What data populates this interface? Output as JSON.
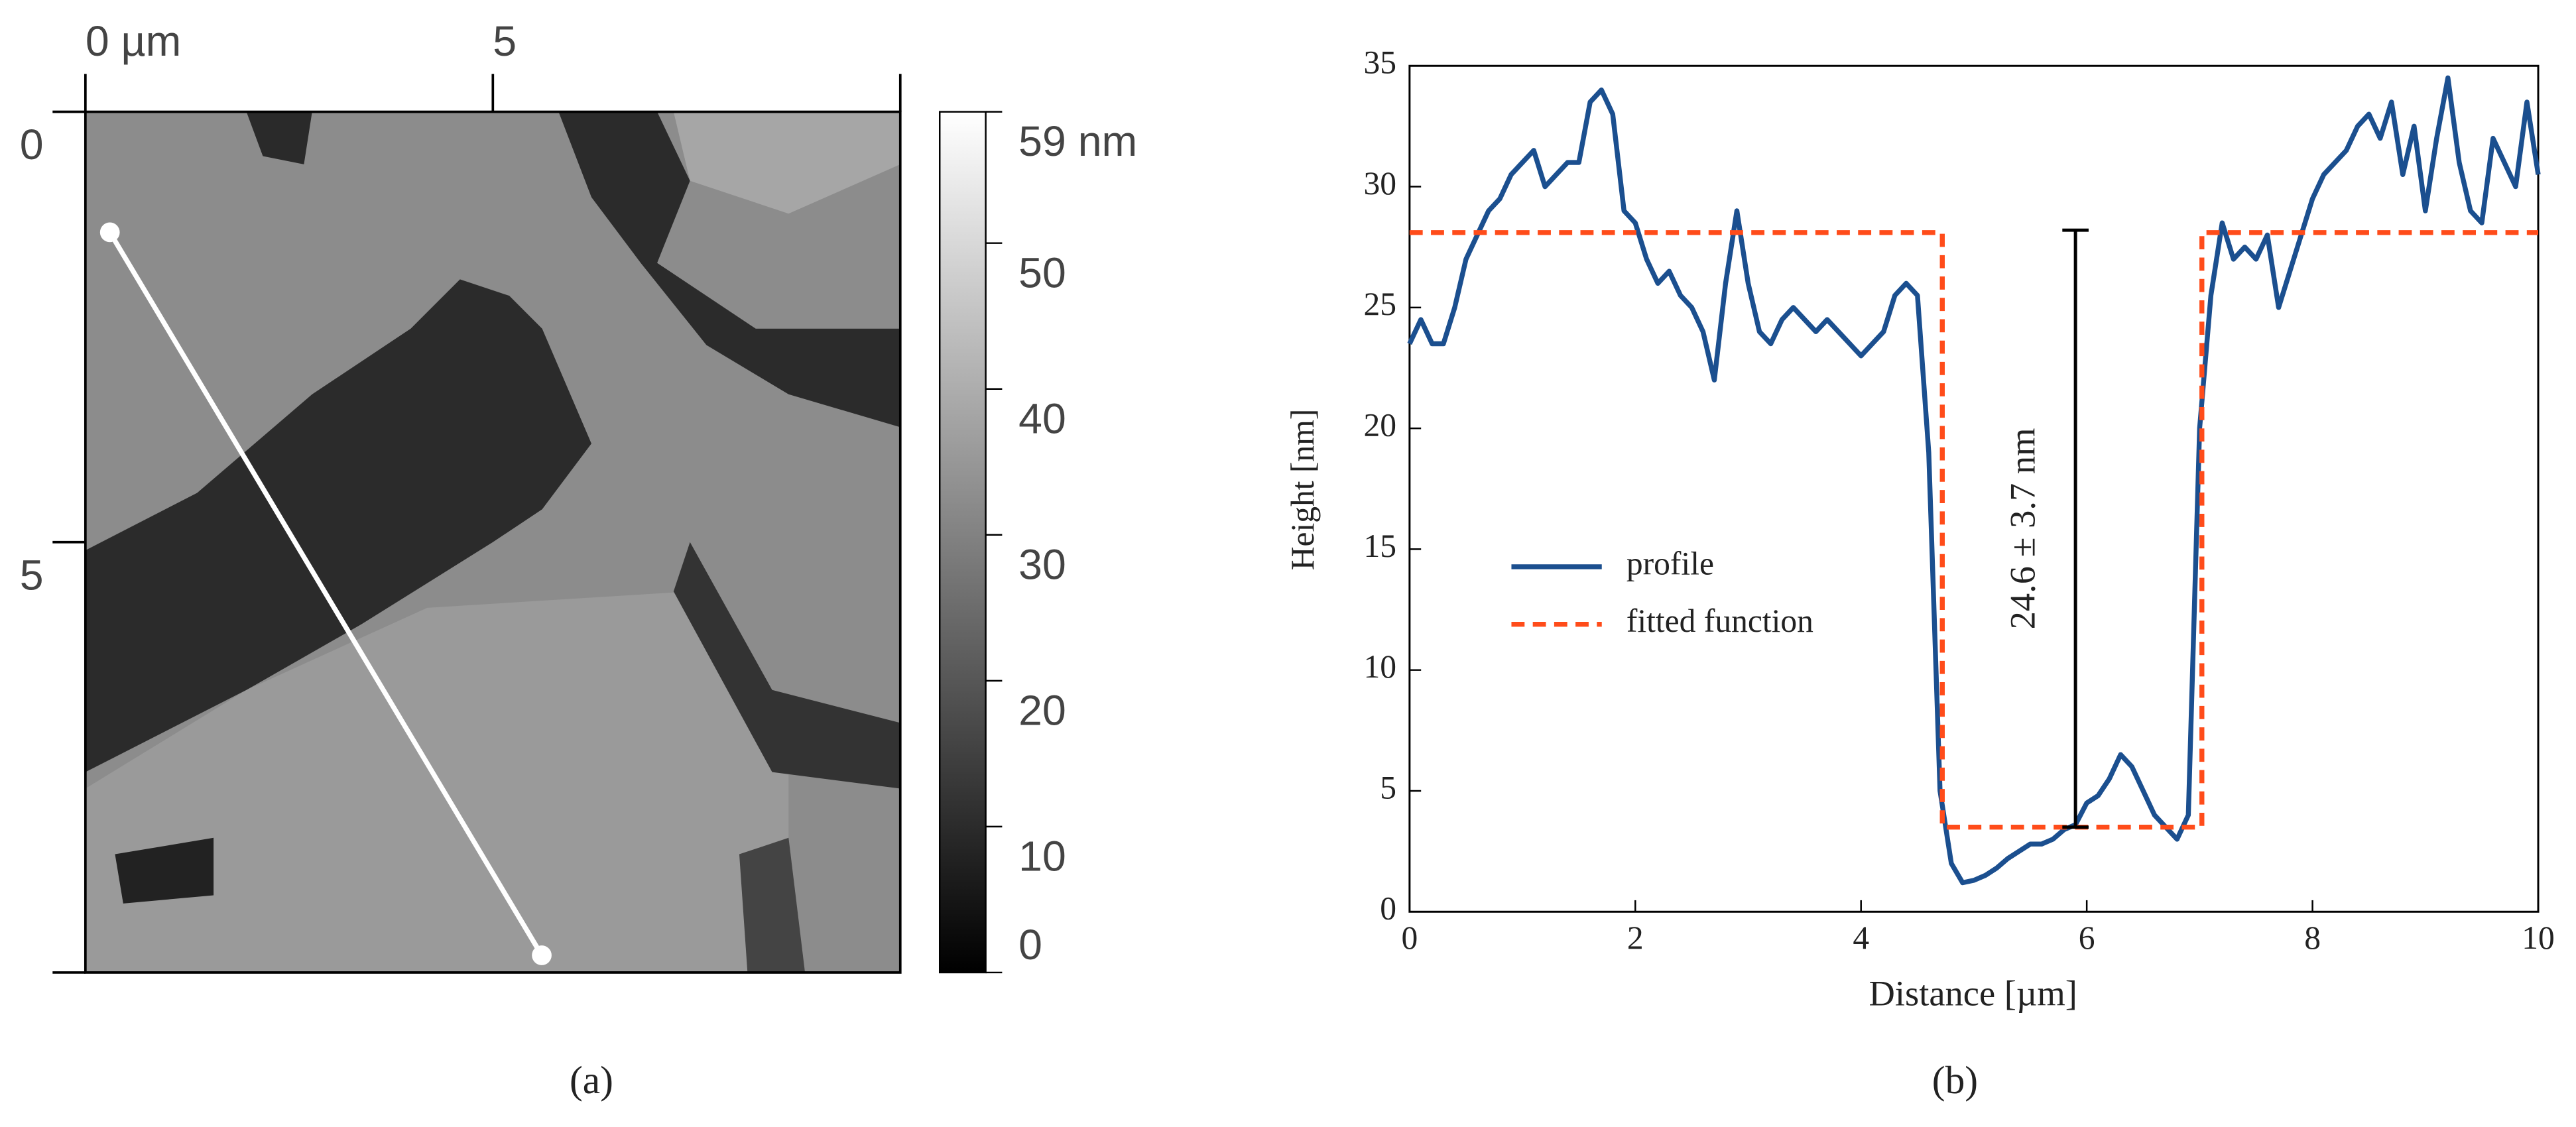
{
  "chart_data": [
    {
      "type": "image",
      "caption": "(a)",
      "xlim": [
        0,
        10
      ],
      "xticks": [
        {
          "value": 0,
          "label": "0 µm"
        },
        5
      ],
      "ylim": [
        10,
        0
      ],
      "yticks": [
        0,
        5
      ],
      "colorbar": {
        "lim": [
          0,
          59
        ],
        "ticks": [
          0,
          10,
          20,
          30,
          40,
          50,
          {
            "value": 59,
            "label": "59 nm"
          }
        ]
      },
      "profile_line": {
        "x": [
          0.3,
          5.6
        ],
        "y": [
          1.4,
          9.8
        ],
        "color": "#ffffff"
      }
    },
    {
      "type": "line",
      "caption": "(b)",
      "xlabel": "Distance [µm]",
      "ylabel": "Height [nm]",
      "xlim": [
        0,
        10
      ],
      "xticks": [
        0,
        2,
        4,
        6,
        8,
        10
      ],
      "ylim": [
        0,
        35
      ],
      "yticks": [
        0,
        5,
        10,
        15,
        20,
        25,
        30,
        35
      ],
      "legend": "center left",
      "annotation": "24.6 ± 3.7 nm",
      "bracket": {
        "x": 5.9,
        "y": [
          3.5,
          28.2
        ]
      },
      "series": [
        {
          "name": "profile",
          "color": "#1b4f8f",
          "dash": false,
          "x": [
            0,
            0.1,
            0.2,
            0.3,
            0.4,
            0.5,
            0.6,
            0.7,
            0.8,
            0.9,
            1,
            1.1,
            1.2,
            1.3,
            1.4,
            1.5,
            1.6,
            1.7,
            1.8,
            1.9,
            2,
            2.1,
            2.2,
            2.3,
            2.4,
            2.5,
            2.6,
            2.7,
            2.8,
            2.9,
            3,
            3.1,
            3.2,
            3.3,
            3.4,
            3.5,
            3.6,
            3.7,
            3.8,
            3.9,
            4,
            4.1,
            4.2,
            4.3,
            4.4,
            4.5,
            4.6,
            4.7,
            4.8,
            4.9,
            5,
            5.1,
            5.2,
            5.3,
            5.4,
            5.5,
            5.6,
            5.7,
            5.8,
            5.9,
            6,
            6.1,
            6.2,
            6.3,
            6.4,
            6.5,
            6.6,
            6.7,
            6.8,
            6.9,
            7,
            7.1,
            7.2,
            7.3,
            7.4,
            7.5,
            7.6,
            7.7,
            7.8,
            7.9,
            8,
            8.1,
            8.2,
            8.3,
            8.4,
            8.5,
            8.6,
            8.7,
            8.8,
            8.9,
            9,
            9.1,
            9.2,
            9.3,
            9.4,
            9.5,
            9.6,
            9.7,
            9.8,
            9.9,
            10
          ],
          "values": [
            23.5,
            24.5,
            23.5,
            23.5,
            25,
            27,
            28,
            29,
            29.5,
            30.5,
            31,
            31.5,
            30,
            30.5,
            31,
            31,
            33.5,
            34,
            33,
            29,
            28.5,
            27,
            26,
            26.5,
            25.5,
            25,
            24,
            22,
            26,
            29,
            26,
            24,
            23.5,
            24.5,
            25,
            24.5,
            24,
            24.5,
            24,
            23.5,
            23,
            23.5,
            24,
            25.5,
            26,
            25.5,
            19,
            5,
            2,
            1.2,
            1.3,
            1.5,
            1.8,
            2.2,
            2.5,
            2.8,
            2.8,
            3,
            3.4,
            3.6,
            4.5,
            4.8,
            5.5,
            6.5,
            6,
            5,
            4,
            3.5,
            3,
            4,
            20,
            25.5,
            28.5,
            27,
            27.5,
            27,
            28,
            25,
            26.5,
            28,
            29.5,
            30.5,
            31,
            31.5,
            32.5,
            33,
            32,
            33.5,
            30.5,
            32.5,
            29,
            32,
            34.5,
            31,
            29,
            28.5,
            32,
            31,
            30,
            33.5,
            30.5
          ]
        },
        {
          "name": "fitted function",
          "color": "#ff4c1a",
          "dash": true,
          "x": [
            0,
            4.72,
            4.72,
            7.02,
            7.02,
            10
          ],
          "values": [
            28.1,
            28.1,
            3.5,
            3.5,
            28.1,
            28.1
          ]
        }
      ]
    }
  ]
}
